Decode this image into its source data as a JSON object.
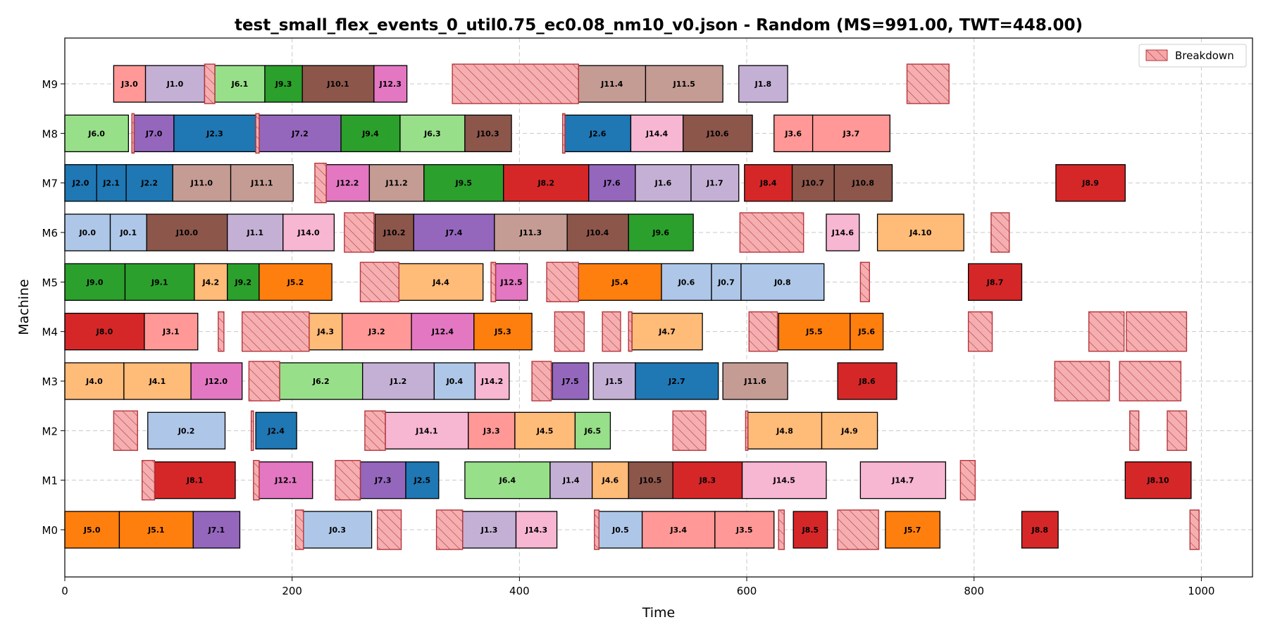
{
  "chart_data": {
    "type": "gantt",
    "title": "test_small_flex_events_0_util0.75_ec0.08_nm10_v0.json - Random (MS=991.00, TWT=448.00)",
    "xlabel": "Time",
    "ylabel": "Machine",
    "xlim": [
      0,
      1045
    ],
    "x_ticks": [
      0,
      200,
      400,
      600,
      800,
      1000
    ],
    "x_tick_labels": [
      "0",
      "200",
      "400",
      "600",
      "800",
      "1000"
    ],
    "machines": [
      "M0",
      "M1",
      "M2",
      "M3",
      "M4",
      "M5",
      "M6",
      "M7",
      "M8",
      "M9"
    ],
    "grid": true,
    "legend": {
      "position": "top-right",
      "label": "Breakdown"
    },
    "job_colors": {
      "J0": "#aec7e8",
      "J1": "#c5b0d5",
      "J2": "#1f77b4",
      "J3": "#ff9896",
      "J4": "#ffbb78",
      "J5": "#ff7f0e",
      "J6": "#98df8a",
      "J7": "#9467bd",
      "J8": "#d62728",
      "J9": "#2ca02c",
      "J10": "#8c564b",
      "J11": "#c49c94",
      "J12": "#e377c2",
      "J14": "#f7b6d2"
    },
    "breakdown_color": "#f4a6a8",
    "operations": [
      {
        "machine": "M9",
        "label": "J3.0",
        "start": 43,
        "end": 71
      },
      {
        "machine": "M9",
        "label": "J1.0",
        "start": 71,
        "end": 123
      },
      {
        "machine": "M9",
        "label": "J6.1",
        "start": 132,
        "end": 176
      },
      {
        "machine": "M9",
        "label": "J9.3",
        "start": 176,
        "end": 209
      },
      {
        "machine": "M9",
        "label": "J10.1",
        "start": 209,
        "end": 272
      },
      {
        "machine": "M9",
        "label": "J12.3",
        "start": 272,
        "end": 301
      },
      {
        "machine": "M9",
        "label": "J11.4",
        "start": 452,
        "end": 511
      },
      {
        "machine": "M9",
        "label": "J11.5",
        "start": 511,
        "end": 579
      },
      {
        "machine": "M9",
        "label": "J1.8",
        "start": 593,
        "end": 636
      },
      {
        "machine": "M8",
        "label": "J6.0",
        "start": 0,
        "end": 56
      },
      {
        "machine": "M8",
        "label": "J7.0",
        "start": 61,
        "end": 96
      },
      {
        "machine": "M8",
        "label": "J2.3",
        "start": 96,
        "end": 168
      },
      {
        "machine": "M8",
        "label": "J7.2",
        "start": 171,
        "end": 243
      },
      {
        "machine": "M8",
        "label": "J9.4",
        "start": 243,
        "end": 295
      },
      {
        "machine": "M8",
        "label": "J6.3",
        "start": 295,
        "end": 352
      },
      {
        "machine": "M8",
        "label": "J10.3",
        "start": 352,
        "end": 393
      },
      {
        "machine": "M8",
        "label": "J2.6",
        "start": 440,
        "end": 498
      },
      {
        "machine": "M8",
        "label": "J14.4",
        "start": 498,
        "end": 544
      },
      {
        "machine": "M8",
        "label": "J10.6",
        "start": 544,
        "end": 605
      },
      {
        "machine": "M8",
        "label": "J3.6",
        "start": 624,
        "end": 658
      },
      {
        "machine": "M8",
        "label": "J3.7",
        "start": 658,
        "end": 726
      },
      {
        "machine": "M7",
        "label": "J2.0",
        "start": 0,
        "end": 28
      },
      {
        "machine": "M7",
        "label": "J2.1",
        "start": 28,
        "end": 54
      },
      {
        "machine": "M7",
        "label": "J2.2",
        "start": 54,
        "end": 95
      },
      {
        "machine": "M7",
        "label": "J11.0",
        "start": 95,
        "end": 146
      },
      {
        "machine": "M7",
        "label": "J11.1",
        "start": 146,
        "end": 201
      },
      {
        "machine": "M7",
        "label": "J12.2",
        "start": 230,
        "end": 268
      },
      {
        "machine": "M7",
        "label": "J11.2",
        "start": 268,
        "end": 316
      },
      {
        "machine": "M7",
        "label": "J9.5",
        "start": 316,
        "end": 386
      },
      {
        "machine": "M7",
        "label": "J8.2",
        "start": 386,
        "end": 461
      },
      {
        "machine": "M7",
        "label": "J7.6",
        "start": 461,
        "end": 502
      },
      {
        "machine": "M7",
        "label": "J1.6",
        "start": 502,
        "end": 551
      },
      {
        "machine": "M7",
        "label": "J1.7",
        "start": 551,
        "end": 593
      },
      {
        "machine": "M7",
        "label": "J8.4",
        "start": 598,
        "end": 640
      },
      {
        "machine": "M7",
        "label": "J10.7",
        "start": 640,
        "end": 677
      },
      {
        "machine": "M7",
        "label": "J10.8",
        "start": 677,
        "end": 728
      },
      {
        "machine": "M7",
        "label": "J8.9",
        "start": 872,
        "end": 933
      },
      {
        "machine": "M6",
        "label": "J0.0",
        "start": 0,
        "end": 40
      },
      {
        "machine": "M6",
        "label": "J0.1",
        "start": 40,
        "end": 72
      },
      {
        "machine": "M6",
        "label": "J10.0",
        "start": 72,
        "end": 143
      },
      {
        "machine": "M6",
        "label": "J1.1",
        "start": 143,
        "end": 192
      },
      {
        "machine": "M6",
        "label": "J14.0",
        "start": 192,
        "end": 237
      },
      {
        "machine": "M6",
        "label": "J10.2",
        "start": 273,
        "end": 307
      },
      {
        "machine": "M6",
        "label": "J7.4",
        "start": 307,
        "end": 378
      },
      {
        "machine": "M6",
        "label": "J11.3",
        "start": 378,
        "end": 442
      },
      {
        "machine": "M6",
        "label": "J10.4",
        "start": 442,
        "end": 496
      },
      {
        "machine": "M6",
        "label": "J9.6",
        "start": 496,
        "end": 553
      },
      {
        "machine": "M6",
        "label": "J14.6",
        "start": 670,
        "end": 699
      },
      {
        "machine": "M6",
        "label": "J4.10",
        "start": 715,
        "end": 791
      },
      {
        "machine": "M5",
        "label": "J9.0",
        "start": 0,
        "end": 53
      },
      {
        "machine": "M5",
        "label": "J9.1",
        "start": 53,
        "end": 114
      },
      {
        "machine": "M5",
        "label": "J4.2",
        "start": 114,
        "end": 143
      },
      {
        "machine": "M5",
        "label": "J9.2",
        "start": 143,
        "end": 171
      },
      {
        "machine": "M5",
        "label": "J5.2",
        "start": 171,
        "end": 235
      },
      {
        "machine": "M5",
        "label": "J4.4",
        "start": 294,
        "end": 368
      },
      {
        "machine": "M5",
        "label": "J12.5",
        "start": 379,
        "end": 407
      },
      {
        "machine": "M5",
        "label": "J5.4",
        "start": 452,
        "end": 525
      },
      {
        "machine": "M5",
        "label": "J0.6",
        "start": 525,
        "end": 569
      },
      {
        "machine": "M5",
        "label": "J0.7",
        "start": 569,
        "end": 595
      },
      {
        "machine": "M5",
        "label": "J0.8",
        "start": 595,
        "end": 668
      },
      {
        "machine": "M5",
        "label": "J8.7",
        "start": 795,
        "end": 842
      },
      {
        "machine": "M4",
        "label": "J8.0",
        "start": 0,
        "end": 70
      },
      {
        "machine": "M4",
        "label": "J3.1",
        "start": 70,
        "end": 117
      },
      {
        "machine": "M4",
        "label": "J4.3",
        "start": 215,
        "end": 244
      },
      {
        "machine": "M4",
        "label": "J3.2",
        "start": 244,
        "end": 305
      },
      {
        "machine": "M4",
        "label": "J12.4",
        "start": 305,
        "end": 360
      },
      {
        "machine": "M4",
        "label": "J5.3",
        "start": 360,
        "end": 411
      },
      {
        "machine": "M4",
        "label": "J4.7",
        "start": 499,
        "end": 561
      },
      {
        "machine": "M4",
        "label": "J5.5",
        "start": 628,
        "end": 691
      },
      {
        "machine": "M4",
        "label": "J5.6",
        "start": 691,
        "end": 720
      },
      {
        "machine": "M3",
        "label": "J4.0",
        "start": 0,
        "end": 52
      },
      {
        "machine": "M3",
        "label": "J4.1",
        "start": 52,
        "end": 111
      },
      {
        "machine": "M3",
        "label": "J12.0",
        "start": 111,
        "end": 156
      },
      {
        "machine": "M3",
        "label": "J6.2",
        "start": 189,
        "end": 262
      },
      {
        "machine": "M3",
        "label": "J1.2",
        "start": 262,
        "end": 325
      },
      {
        "machine": "M3",
        "label": "J0.4",
        "start": 325,
        "end": 361
      },
      {
        "machine": "M3",
        "label": "J14.2",
        "start": 361,
        "end": 391
      },
      {
        "machine": "M3",
        "label": "J7.5",
        "start": 429,
        "end": 461
      },
      {
        "machine": "M3",
        "label": "J1.5",
        "start": 465,
        "end": 502
      },
      {
        "machine": "M3",
        "label": "J2.7",
        "start": 502,
        "end": 575
      },
      {
        "machine": "M3",
        "label": "J11.6",
        "start": 579,
        "end": 636
      },
      {
        "machine": "M3",
        "label": "J8.6",
        "start": 680,
        "end": 732
      },
      {
        "machine": "M2",
        "label": "J0.2",
        "start": 73,
        "end": 141
      },
      {
        "machine": "M2",
        "label": "J2.4",
        "start": 168,
        "end": 204
      },
      {
        "machine": "M2",
        "label": "J14.1",
        "start": 282,
        "end": 355
      },
      {
        "machine": "M2",
        "label": "J3.3",
        "start": 355,
        "end": 396
      },
      {
        "machine": "M2",
        "label": "J4.5",
        "start": 396,
        "end": 449
      },
      {
        "machine": "M2",
        "label": "J6.5",
        "start": 449,
        "end": 480
      },
      {
        "machine": "M2",
        "label": "J4.8",
        "start": 601,
        "end": 666
      },
      {
        "machine": "M2",
        "label": "J4.9",
        "start": 666,
        "end": 715
      },
      {
        "machine": "M1",
        "label": "J8.1",
        "start": 79,
        "end": 150
      },
      {
        "machine": "M1",
        "label": "J12.1",
        "start": 171,
        "end": 218
      },
      {
        "machine": "M1",
        "label": "J7.3",
        "start": 260,
        "end": 300
      },
      {
        "machine": "M1",
        "label": "J2.5",
        "start": 300,
        "end": 329
      },
      {
        "machine": "M1",
        "label": "J6.4",
        "start": 352,
        "end": 427
      },
      {
        "machine": "M1",
        "label": "J1.4",
        "start": 427,
        "end": 464
      },
      {
        "machine": "M1",
        "label": "J4.6",
        "start": 464,
        "end": 496
      },
      {
        "machine": "M1",
        "label": "J10.5",
        "start": 496,
        "end": 535
      },
      {
        "machine": "M1",
        "label": "J8.3",
        "start": 535,
        "end": 596
      },
      {
        "machine": "M1",
        "label": "J14.5",
        "start": 596,
        "end": 670
      },
      {
        "machine": "M1",
        "label": "J14.7",
        "start": 700,
        "end": 775
      },
      {
        "machine": "M1",
        "label": "J8.10",
        "start": 933,
        "end": 991
      },
      {
        "machine": "M0",
        "label": "J5.0",
        "start": 0,
        "end": 48
      },
      {
        "machine": "M0",
        "label": "J5.1",
        "start": 48,
        "end": 113
      },
      {
        "machine": "M0",
        "label": "J7.1",
        "start": 113,
        "end": 154
      },
      {
        "machine": "M0",
        "label": "J0.3",
        "start": 210,
        "end": 270
      },
      {
        "machine": "M0",
        "label": "J1.3",
        "start": 350,
        "end": 397
      },
      {
        "machine": "M0",
        "label": "J14.3",
        "start": 397,
        "end": 433
      },
      {
        "machine": "M0",
        "label": "J0.5",
        "start": 470,
        "end": 508
      },
      {
        "machine": "M0",
        "label": "J3.4",
        "start": 508,
        "end": 572
      },
      {
        "machine": "M0",
        "label": "J3.5",
        "start": 572,
        "end": 624
      },
      {
        "machine": "M0",
        "label": "J8.5",
        "start": 641,
        "end": 671
      },
      {
        "machine": "M0",
        "label": "J5.7",
        "start": 722,
        "end": 770
      },
      {
        "machine": "M0",
        "label": "J8.8",
        "start": 842,
        "end": 874
      }
    ],
    "breakdowns": [
      {
        "machine": "M9",
        "start": 123,
        "end": 132
      },
      {
        "machine": "M9",
        "start": 341,
        "end": 452
      },
      {
        "machine": "M9",
        "start": 741,
        "end": 778
      },
      {
        "machine": "M8",
        "start": 59,
        "end": 61
      },
      {
        "machine": "M8",
        "start": 168,
        "end": 171
      },
      {
        "machine": "M8",
        "start": 438,
        "end": 440
      },
      {
        "machine": "M7",
        "start": 220,
        "end": 230
      },
      {
        "machine": "M6",
        "start": 246,
        "end": 272
      },
      {
        "machine": "M6",
        "start": 594,
        "end": 650
      },
      {
        "machine": "M6",
        "start": 815,
        "end": 831
      },
      {
        "machine": "M5",
        "start": 260,
        "end": 294
      },
      {
        "machine": "M5",
        "start": 375,
        "end": 379
      },
      {
        "machine": "M5",
        "start": 424,
        "end": 452
      },
      {
        "machine": "M5",
        "start": 700,
        "end": 708
      },
      {
        "machine": "M4",
        "start": 135,
        "end": 140
      },
      {
        "machine": "M4",
        "start": 156,
        "end": 215
      },
      {
        "machine": "M4",
        "start": 431,
        "end": 457
      },
      {
        "machine": "M4",
        "start": 473,
        "end": 489
      },
      {
        "machine": "M4",
        "start": 496,
        "end": 499
      },
      {
        "machine": "M4",
        "start": 602,
        "end": 627
      },
      {
        "machine": "M4",
        "start": 795,
        "end": 816
      },
      {
        "machine": "M4",
        "start": 901,
        "end": 932
      },
      {
        "machine": "M4",
        "start": 934,
        "end": 987
      },
      {
        "machine": "M3",
        "start": 162,
        "end": 189
      },
      {
        "machine": "M3",
        "start": 411,
        "end": 428
      },
      {
        "machine": "M3",
        "start": 871,
        "end": 919
      },
      {
        "machine": "M3",
        "start": 928,
        "end": 982
      },
      {
        "machine": "M2",
        "start": 43,
        "end": 64
      },
      {
        "machine": "M2",
        "start": 164,
        "end": 166
      },
      {
        "machine": "M2",
        "start": 264,
        "end": 282
      },
      {
        "machine": "M2",
        "start": 535,
        "end": 564
      },
      {
        "machine": "M2",
        "start": 599,
        "end": 601
      },
      {
        "machine": "M2",
        "start": 937,
        "end": 945
      },
      {
        "machine": "M2",
        "start": 970,
        "end": 987
      },
      {
        "machine": "M1",
        "start": 68,
        "end": 79
      },
      {
        "machine": "M1",
        "start": 166,
        "end": 171
      },
      {
        "machine": "M1",
        "start": 238,
        "end": 260
      },
      {
        "machine": "M1",
        "start": 788,
        "end": 801
      },
      {
        "machine": "M0",
        "start": 203,
        "end": 210
      },
      {
        "machine": "M0",
        "start": 275,
        "end": 296
      },
      {
        "machine": "M0",
        "start": 327,
        "end": 350
      },
      {
        "machine": "M0",
        "start": 466,
        "end": 470
      },
      {
        "machine": "M0",
        "start": 628,
        "end": 633
      },
      {
        "machine": "M0",
        "start": 680,
        "end": 716
      },
      {
        "machine": "M0",
        "start": 990,
        "end": 998
      }
    ]
  }
}
